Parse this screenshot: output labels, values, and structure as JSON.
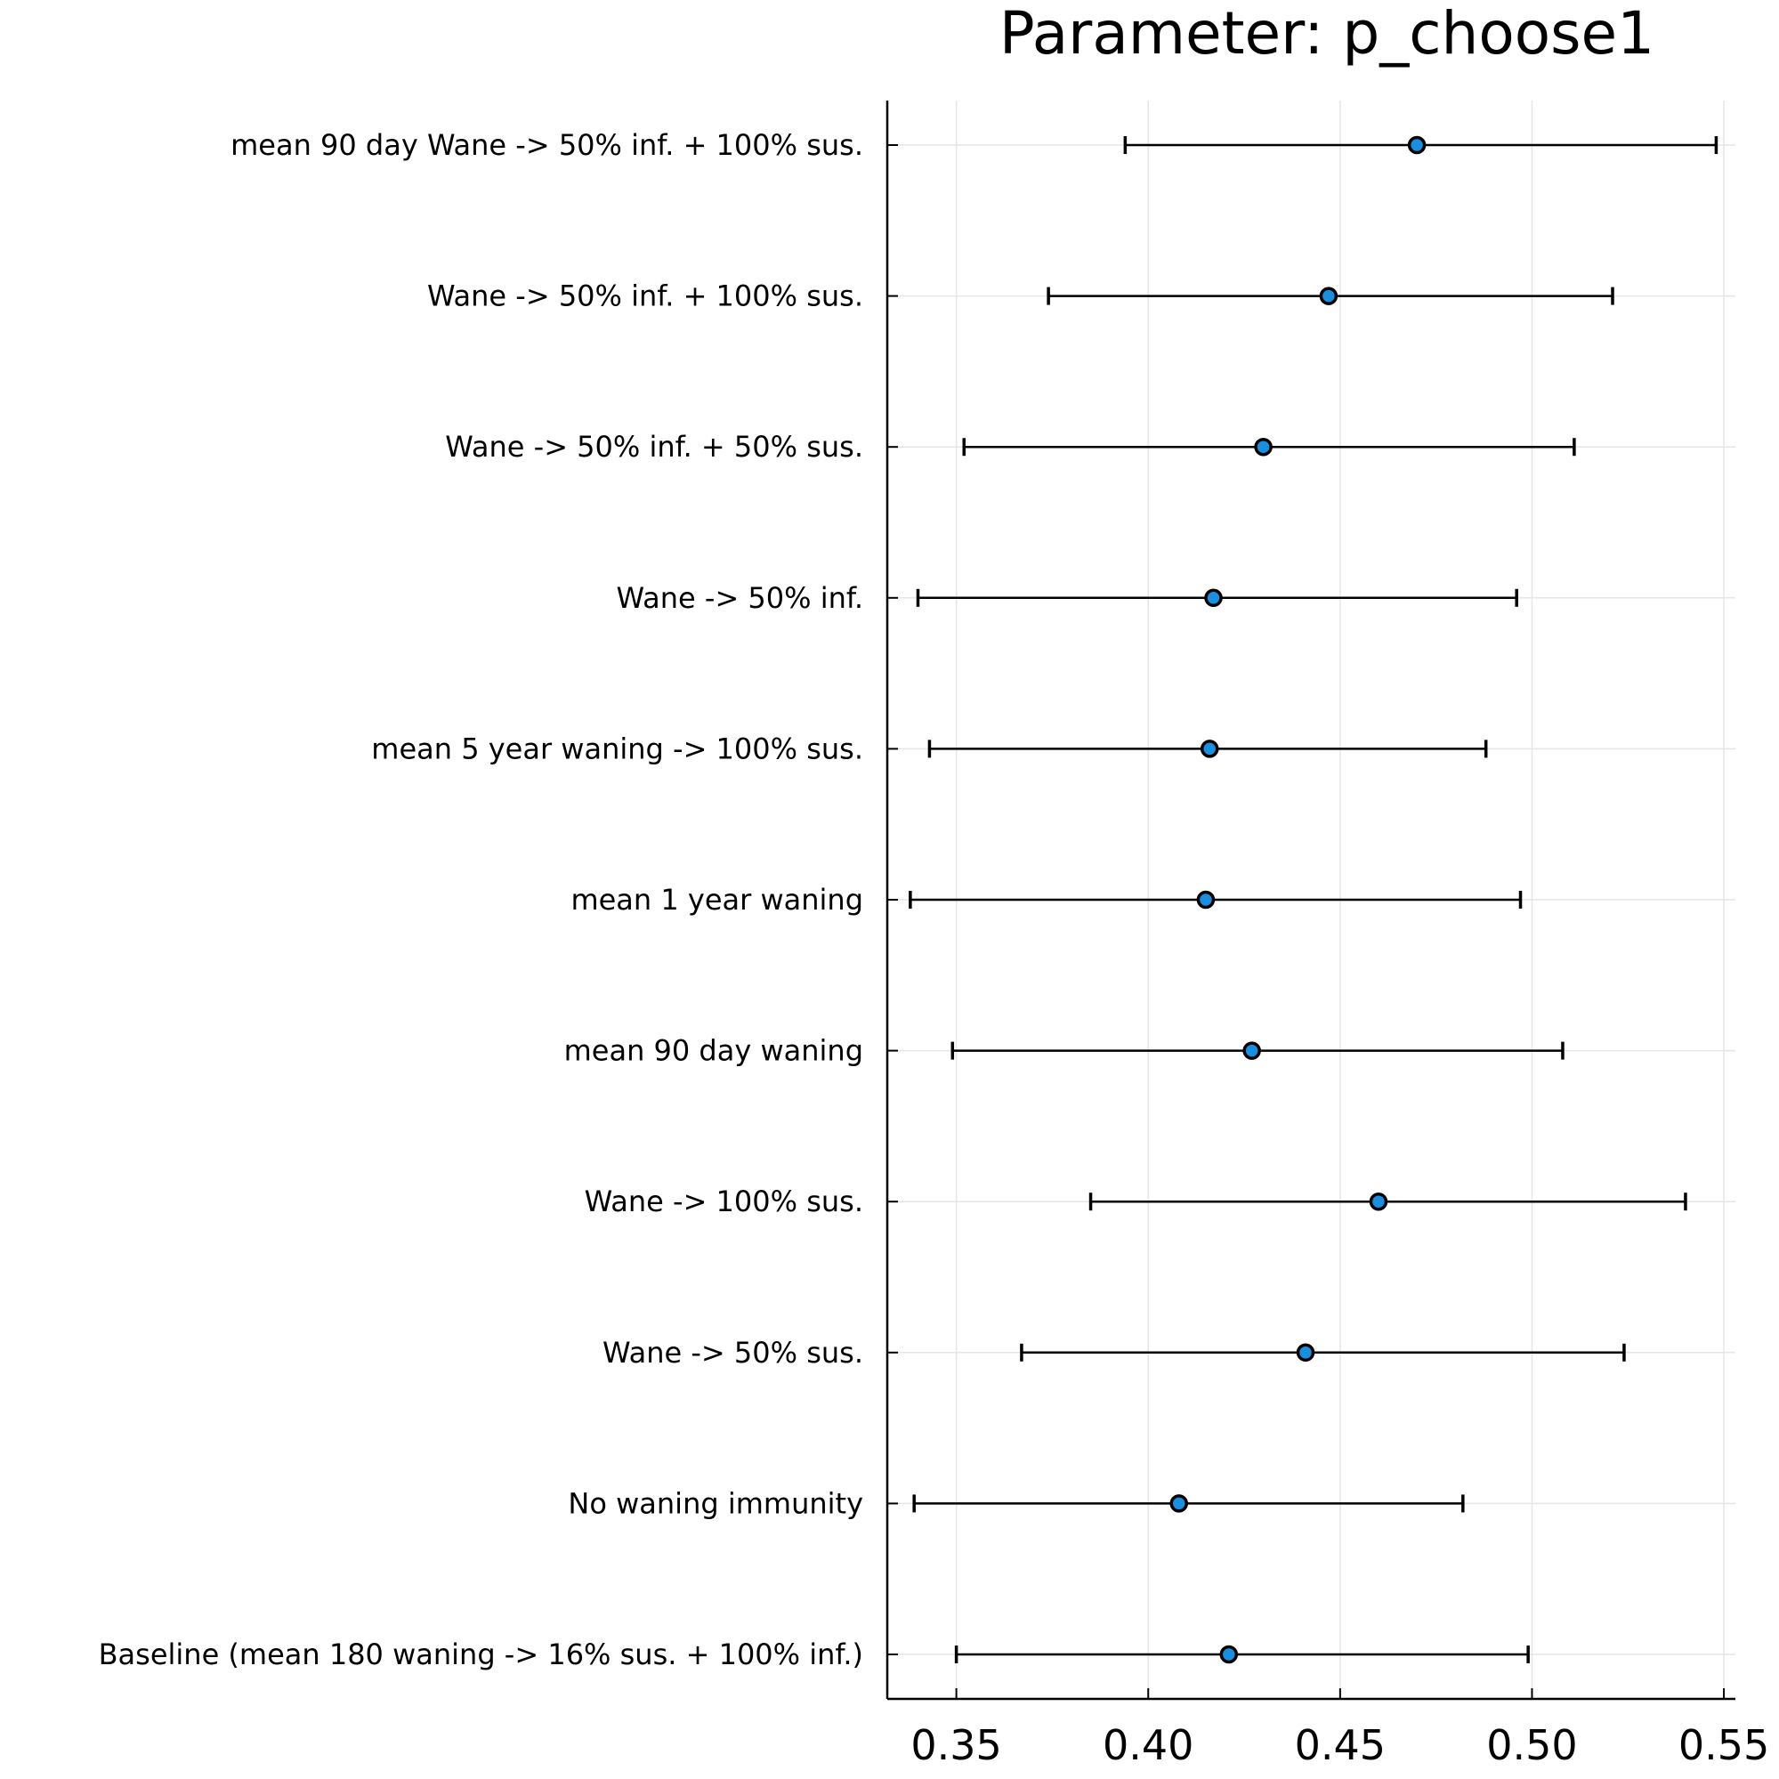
{
  "chart_data": {
    "type": "scatter",
    "title": "Parameter: p_choose1",
    "xlabel": "",
    "ylabel": "",
    "xlim": [
      0.332,
      0.553
    ],
    "xticks": [
      0.35,
      0.4,
      0.45,
      0.5,
      0.55
    ],
    "xtick_labels": [
      "0.35",
      "0.40",
      "0.45",
      "0.50",
      "0.55"
    ],
    "grid": true,
    "legend": "none",
    "colors": {
      "marker": "#1a8fe0",
      "line": "#000000",
      "grid": "#e6e6e6"
    },
    "categories": [
      "mean 90 day Wane -> 50% inf. + 100% sus.",
      "Wane -> 50% inf. + 100% sus.",
      "Wane -> 50% inf. + 50% sus.",
      "Wane -> 50% inf.",
      "mean 5 year waning -> 100% sus.",
      "mean 1 year waning",
      "mean 90 day waning",
      "Wane -> 100% sus.",
      "Wane -> 50% sus.",
      "No waning immunity",
      "Baseline (mean 180 waning -> 16% sus. + 100% inf.)"
    ],
    "series": [
      {
        "estimate": [
          0.47,
          0.447,
          0.43,
          0.417,
          0.416,
          0.415,
          0.427,
          0.46,
          0.441,
          0.408,
          0.421
        ],
        "lower": [
          0.394,
          0.374,
          0.352,
          0.34,
          0.343,
          0.338,
          0.349,
          0.385,
          0.367,
          0.339,
          0.35
        ],
        "upper": [
          0.548,
          0.521,
          0.511,
          0.496,
          0.488,
          0.497,
          0.508,
          0.54,
          0.524,
          0.482,
          0.499
        ]
      }
    ]
  }
}
